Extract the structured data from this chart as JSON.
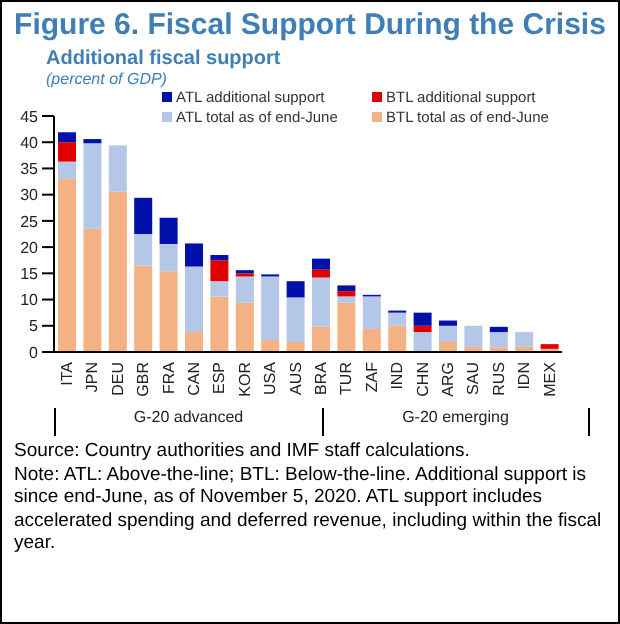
{
  "chart_data": {
    "type": "bar",
    "title": "Figure 6. Fiscal Support During the Crisis",
    "subtitle": "Additional fiscal support",
    "ylabel": "(percent of GDP)",
    "categories": [
      "ITA",
      "JPN",
      "DEU",
      "GBR",
      "FRA",
      "CAN",
      "ESP",
      "KOR",
      "USA",
      "AUS",
      "BRA",
      "TUR",
      "ZAF",
      "IND",
      "CHN",
      "ARG",
      "SAU",
      "RUS",
      "IDN",
      "MEX"
    ],
    "stacked": true,
    "series": [
      {
        "name": "BTL total as of end-June",
        "color": "#f4b183",
        "values": [
          33,
          23.5,
          30.6,
          16.5,
          15.4,
          3.8,
          10.6,
          9.4,
          2.3,
          1.9,
          4.8,
          9.4,
          4.4,
          5,
          0,
          1.9,
          1,
          0.9,
          1,
          0.6
        ]
      },
      {
        "name": "ATL total as of end-June",
        "color": "#b4c7e7",
        "values": [
          3.3,
          16.3,
          8.8,
          6,
          5.2,
          12.5,
          2.9,
          5,
          12.1,
          8.5,
          9.4,
          1.2,
          6.2,
          2.5,
          3.8,
          3.1,
          4,
          2.9,
          2.8,
          null
        ]
      },
      {
        "name": "BTL additional support",
        "color": "#e00000",
        "values": [
          3.7,
          0,
          0,
          0,
          0,
          0,
          4,
          0.6,
          0,
          0,
          1.5,
          1,
          0,
          0,
          1.2,
          0,
          0,
          0,
          0,
          0.9
        ]
      },
      {
        "name": "ATL additional support",
        "color": "#0010a8",
        "values": [
          1.9,
          0.8,
          0,
          6.9,
          5,
          4.4,
          1,
          0.6,
          0.4,
          3.1,
          2.1,
          1.1,
          0.3,
          0.4,
          2.5,
          1,
          0,
          1,
          0,
          0
        ]
      }
    ],
    "ylim": [
      0,
      45
    ],
    "yticks": [
      0,
      5,
      10,
      15,
      20,
      25,
      30,
      35,
      40,
      45
    ],
    "grid": false,
    "legend": "top",
    "annotations": [
      "G-20 advanced",
      "G-20 emerging",
      "Source: Country authorities and IMF staff calculations.",
      "Note: ATL: Above-the-line; BTL: Below-the-line. Additional support is since end-June, as of November 5, 2020. ATL support includes accelerated spending and deferred revenue, including within the fiscal year."
    ]
  }
}
